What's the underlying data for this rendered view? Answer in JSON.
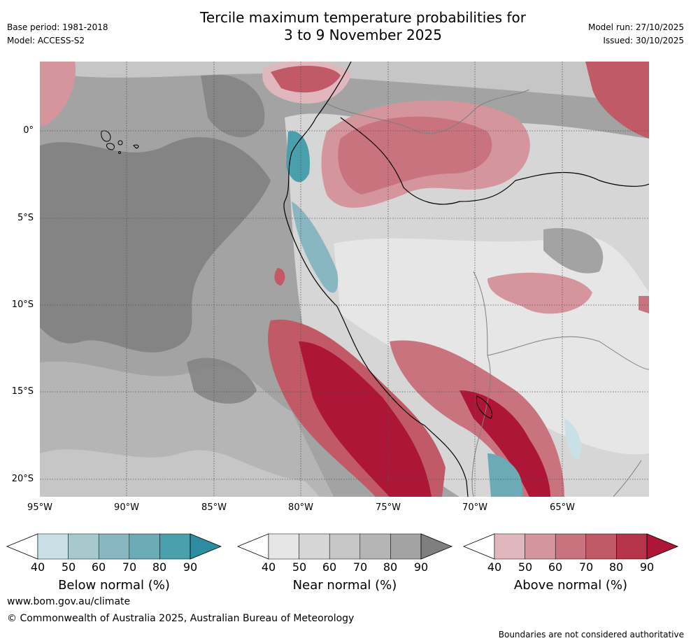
{
  "header": {
    "base_period": "Base period: 1981-2018",
    "model": "Model: ACCESS-S2",
    "title_line1": "Tercile maximum temperature probabilities for",
    "title_line2": "3 to 9 November 2025",
    "model_run": "Model run: 27/10/2025",
    "issued": "Issued: 30/10/2025"
  },
  "map": {
    "lat_labels": [
      "0°",
      "5°S",
      "10°S",
      "15°S",
      "20°S"
    ],
    "lon_labels": [
      "95°W",
      "90°W",
      "85°W",
      "80°W",
      "75°W",
      "70°W",
      "65°W"
    ]
  },
  "legends": [
    {
      "name": "below",
      "title": "Below normal (%)",
      "ticks": [
        "40",
        "50",
        "60",
        "70",
        "80",
        "90"
      ],
      "colors": [
        "#c9e1e6",
        "#a7c9ce",
        "#88b7c1",
        "#6aabb5",
        "#4a9fac",
        "#2c8da0"
      ]
    },
    {
      "name": "near",
      "title": "Near normal (%)",
      "ticks": [
        "40",
        "50",
        "60",
        "70",
        "80",
        "90"
      ],
      "colors": [
        "#e6e6e6",
        "#d6d6d6",
        "#c6c6c6",
        "#b5b5b5",
        "#a3a3a3",
        "#7f7f7f"
      ]
    },
    {
      "name": "above",
      "title": "Above normal (%)",
      "ticks": [
        "40",
        "50",
        "60",
        "70",
        "80",
        "90"
      ],
      "colors": [
        "#e0b7bd",
        "#d4959d",
        "#c9737f",
        "#c15966",
        "#b6344a",
        "#ad1637"
      ]
    }
  ],
  "footer": {
    "website": "www.bom.gov.au/climate",
    "copyright": "© Commonwealth of Australia 2025, Australian Bureau of Meteorology",
    "disclaimer": "Boundaries are not considered authoritative"
  }
}
